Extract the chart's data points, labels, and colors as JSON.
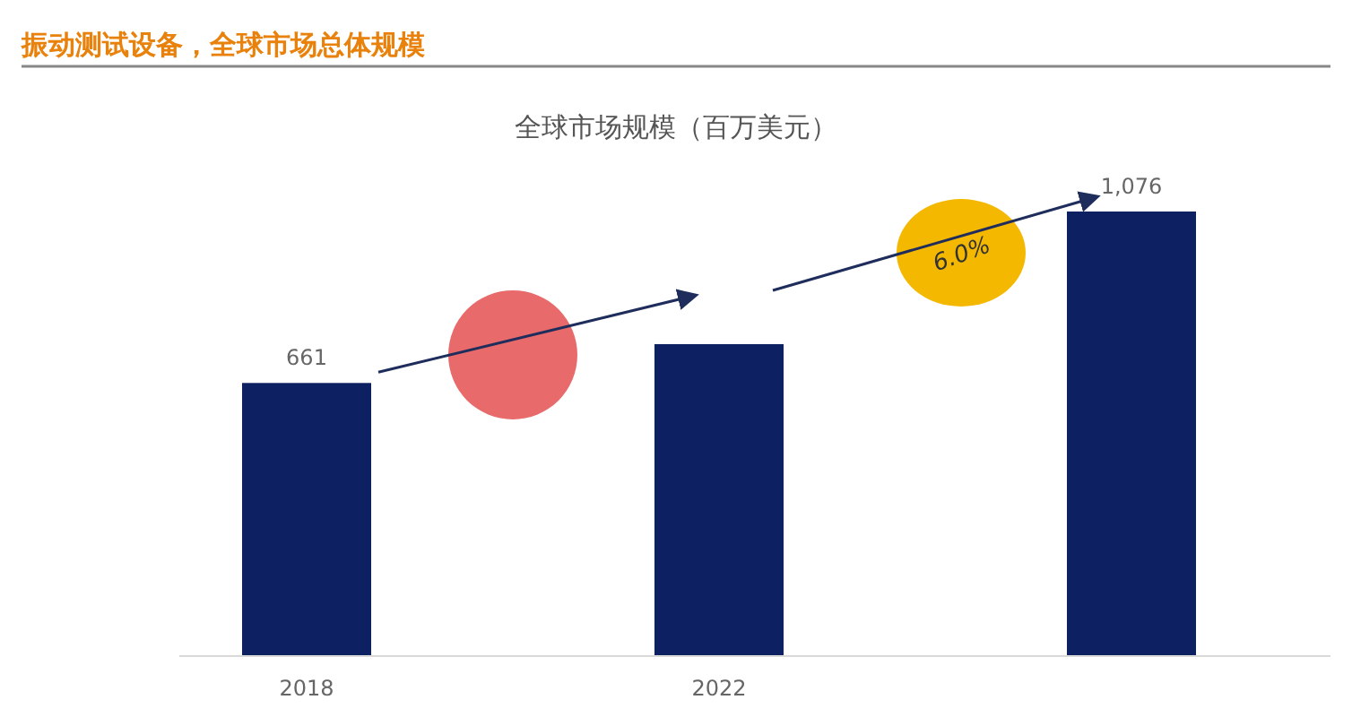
{
  "chart_data": {
    "type": "bar",
    "title": "振动测试设备，全球市场总体规模",
    "subtitle": "全球市场规模（百万美元）",
    "categories": [
      "2018",
      "2022",
      null
    ],
    "values": [
      661,
      755,
      1076
    ],
    "value_labels": [
      "661",
      null,
      "1,076"
    ],
    "color": "#0d2062",
    "annotations": [
      "6.0%"
    ]
  }
}
